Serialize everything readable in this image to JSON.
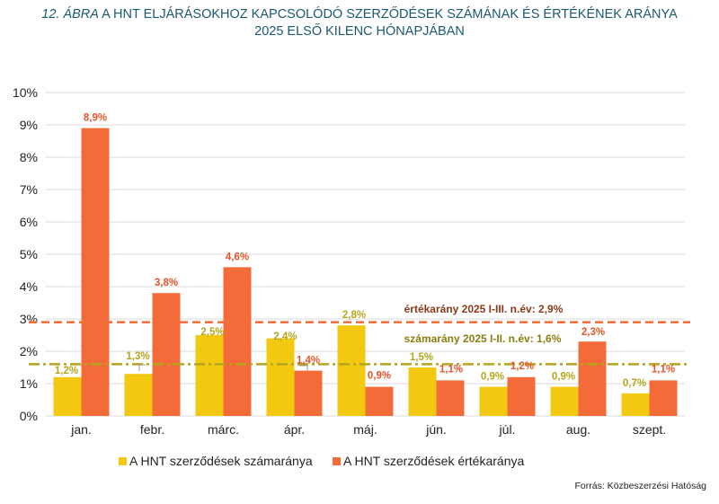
{
  "title": {
    "prefix": "12. ÁBRA",
    "line1": "A HNT ELJÁRÁSOKHOZ KAPCSOLÓDÓ SZERZŐDÉSEK SZÁMÁNAK ÉS ÉRTÉKÉNEK ARÁNYA",
    "line2": "2025 ELSŐ KILENC HÓNAPJÁBAN"
  },
  "source": "Forrás: Közbeszerzési Hatóság",
  "colors": {
    "count": "#f2c811",
    "value": "#f26b38",
    "count_line": "#b5a51c",
    "value_line": "#f26b38",
    "grid": "#d9d9d9",
    "title": "#1c5870"
  },
  "chart_data": {
    "type": "bar",
    "categories": [
      "jan.",
      "febr.",
      "márc.",
      "ápr.",
      "máj.",
      "jún.",
      "júl.",
      "aug.",
      "szept."
    ],
    "series": [
      {
        "name": "A HNT szerződések számaránya",
        "values": [
          1.2,
          1.3,
          2.5,
          2.4,
          2.8,
          1.5,
          0.9,
          0.9,
          0.7
        ],
        "labels": [
          "1,2%",
          "1,3%",
          "2,5%",
          "2,4%",
          "2,8%",
          "1,5%",
          "0,9%",
          "0,9%",
          "0,7%"
        ]
      },
      {
        "name": "A HNT szerződések értékaránya",
        "values": [
          8.9,
          3.8,
          4.6,
          1.4,
          0.9,
          1.1,
          1.2,
          2.3,
          1.1
        ],
        "labels": [
          "8,9%",
          "3,8%",
          "4,6%",
          "1,4%",
          "0,9%",
          "1,1%",
          "1,2%",
          "2,3%",
          "1,1%"
        ]
      }
    ],
    "reference_lines": [
      {
        "name": "értékarány",
        "value": 2.9,
        "label": "értékarány 2025 I-III. n.év: 2,9%",
        "style": "dashed"
      },
      {
        "name": "számarány",
        "value": 1.6,
        "label": "számarány 2025 I-II. n.év: 1,6%",
        "style": "dash-dot"
      }
    ],
    "yticks": [
      "0%",
      "1%",
      "2%",
      "3%",
      "4%",
      "5%",
      "6%",
      "7%",
      "8%",
      "9%",
      "10%"
    ],
    "ylim": [
      0,
      10
    ],
    "grid": true,
    "legend": "bottom"
  }
}
